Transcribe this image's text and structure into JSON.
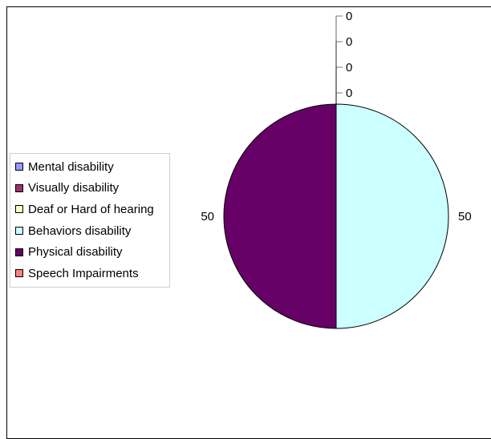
{
  "chart_data": {
    "type": "pie",
    "categories": [
      "Mental disability",
      "Visually disability",
      "Deaf or Hard of hearing",
      "Behaviors disability",
      "Physical disability",
      "Speech Impairments"
    ],
    "values": [
      0,
      0,
      0,
      50,
      50,
      0
    ],
    "data_labels": [
      "0",
      "0",
      "0",
      "50",
      "50",
      "0"
    ],
    "colors": [
      "#9999ff",
      "#993366",
      "#ffffcc",
      "#ccffff",
      "#660066",
      "#ff8080"
    ],
    "title": "",
    "legend_position": "left"
  }
}
